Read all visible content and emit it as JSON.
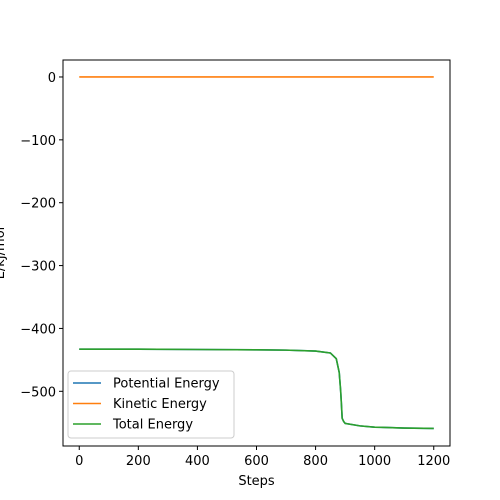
{
  "chart_data": {
    "type": "line",
    "title": "",
    "xlabel": "Steps",
    "ylabel": "E/kJ/mol",
    "xlim": [
      -55,
      1255
    ],
    "ylim": [
      -587,
      27
    ],
    "xticks": [
      0,
      200,
      400,
      600,
      800,
      1000,
      1200
    ],
    "yticks": [
      0,
      -100,
      -200,
      -300,
      -400,
      -500
    ],
    "x_tick_labels": [
      "0",
      "200",
      "400",
      "600",
      "800",
      "1000",
      "1200"
    ],
    "y_tick_labels": [
      "0",
      "−100",
      "−200",
      "−300",
      "−400",
      "−500"
    ],
    "grid": false,
    "legend_position": "lower-left",
    "series": [
      {
        "name": "Potential Energy",
        "color": "#1f77b4",
        "x": [
          0,
          200,
          400,
          600,
          700,
          800,
          850,
          870,
          880,
          885,
          888,
          890,
          895,
          900,
          950,
          1000,
          1100,
          1200
        ],
        "y": [
          -433,
          -433,
          -433.5,
          -434,
          -434.5,
          -436,
          -439,
          -448,
          -470,
          -500,
          -525,
          -543,
          -548,
          -551,
          -555,
          -557,
          -558.5,
          -559
        ]
      },
      {
        "name": "Kinetic Energy",
        "color": "#ff7f0e",
        "x": [
          0,
          200,
          400,
          600,
          800,
          1000,
          1200
        ],
        "y": [
          0,
          0,
          0,
          0,
          0,
          0,
          0
        ]
      },
      {
        "name": "Total Energy",
        "color": "#2ca02c",
        "x": [
          0,
          200,
          400,
          600,
          700,
          800,
          850,
          870,
          880,
          885,
          888,
          890,
          895,
          900,
          950,
          1000,
          1100,
          1200
        ],
        "y": [
          -433,
          -433,
          -433.5,
          -434,
          -434.5,
          -436,
          -439,
          -448,
          -470,
          -500,
          -525,
          -543,
          -548,
          -551,
          -555,
          -557,
          -558.5,
          -559
        ]
      }
    ]
  }
}
